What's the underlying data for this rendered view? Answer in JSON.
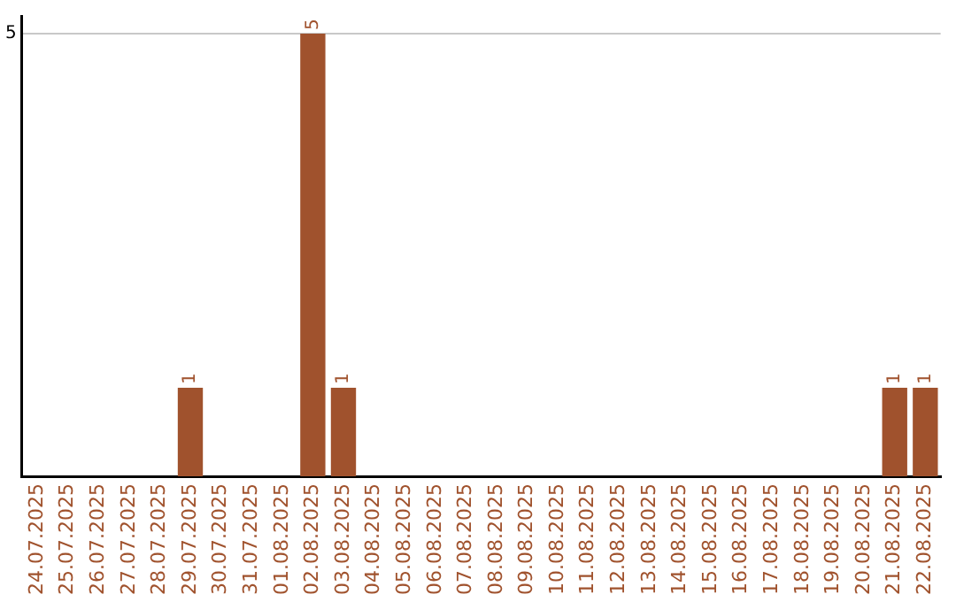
{
  "chart_data": {
    "type": "bar",
    "categories": [
      "24.07.2025",
      "25.07.2025",
      "26.07.2025",
      "27.07.2025",
      "28.07.2025",
      "29.07.2025",
      "30.07.2025",
      "31.07.2025",
      "01.08.2025",
      "02.08.2025",
      "03.08.2025",
      "04.08.2025",
      "05.08.2025",
      "06.08.2025",
      "07.08.2025",
      "08.08.2025",
      "09.08.2025",
      "10.08.2025",
      "11.08.2025",
      "12.08.2025",
      "13.08.2025",
      "14.08.2025",
      "15.08.2025",
      "16.08.2025",
      "17.08.2025",
      "18.08.2025",
      "19.08.2025",
      "20.08.2025",
      "21.08.2025",
      "22.08.2025"
    ],
    "values": [
      0,
      0,
      0,
      0,
      0,
      1,
      0,
      0,
      0,
      5,
      1,
      0,
      0,
      0,
      0,
      0,
      0,
      0,
      0,
      0,
      0,
      0,
      0,
      0,
      0,
      0,
      0,
      0,
      1,
      1
    ],
    "value_labels": [
      null,
      null,
      null,
      null,
      null,
      "1",
      null,
      null,
      null,
      "5",
      "1",
      null,
      null,
      null,
      null,
      null,
      null,
      null,
      null,
      null,
      null,
      null,
      null,
      null,
      null,
      null,
      null,
      null,
      "1",
      "1"
    ],
    "color": "#a0522d",
    "ylim": [
      0,
      5.2
    ],
    "yticks": [
      5
    ],
    "grid": "y"
  }
}
